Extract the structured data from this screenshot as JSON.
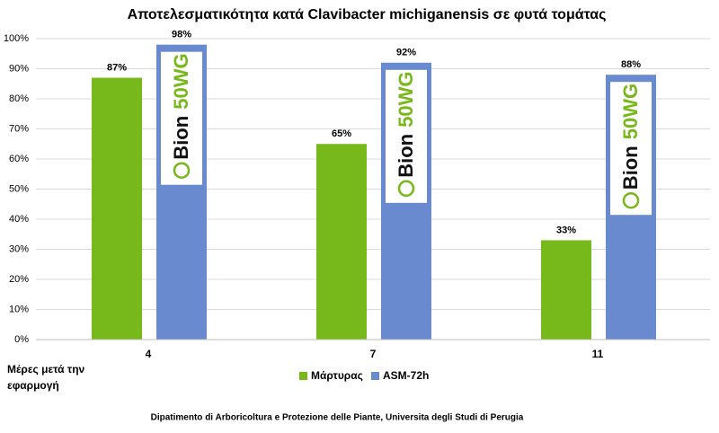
{
  "chart_data": {
    "type": "bar",
    "title": "Αποτελεσματικότητα κατά Clavibacter michiganensis σε φυτά τομάτας",
    "categories": [
      "4",
      "7",
      "11"
    ],
    "series": [
      {
        "name": "Μάρτυρας",
        "color": "#77b81a",
        "values": [
          87,
          65,
          33
        ],
        "value_labels": [
          "87%",
          "65%",
          "33%"
        ]
      },
      {
        "name": "ASM-72h",
        "color": "#6a8ad0",
        "values": [
          98,
          92,
          88
        ],
        "value_labels": [
          "98%",
          "92%",
          "88%"
        ]
      }
    ],
    "ylim": [
      0,
      100
    ],
    "yticks": [
      {
        "value": 0,
        "label": "0%"
      },
      {
        "value": 10,
        "label": "10%"
      },
      {
        "value": 20,
        "label": "20%"
      },
      {
        "value": 30,
        "label": "30%"
      },
      {
        "value": 40,
        "label": "40%"
      },
      {
        "value": 50,
        "label": "50%"
      },
      {
        "value": 60,
        "label": "60%"
      },
      {
        "value": 70,
        "label": "70%"
      },
      {
        "value": 80,
        "label": "80%"
      },
      {
        "value": 90,
        "label": "90%"
      },
      {
        "value": 100,
        "label": "100%"
      }
    ],
    "grid": true,
    "x_label": "Μέρες μετά την εφαρμογή",
    "logo": {
      "name": "Bion",
      "suffix": "50WG"
    },
    "source": "Dipatimento di Arboricoltura e Protezione delle Piante, Universita degli Studi di Perugia"
  }
}
